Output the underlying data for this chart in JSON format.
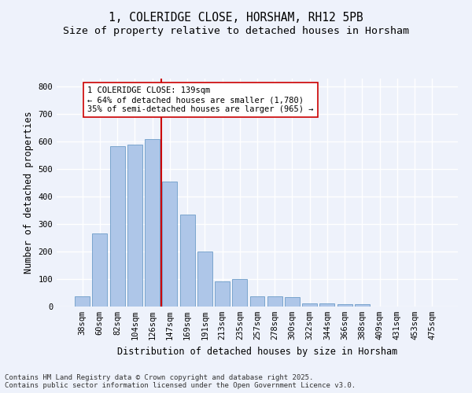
{
  "title_line1": "1, COLERIDGE CLOSE, HORSHAM, RH12 5PB",
  "title_line2": "Size of property relative to detached houses in Horsham",
  "xlabel": "Distribution of detached houses by size in Horsham",
  "ylabel": "Number of detached properties",
  "categories": [
    "38sqm",
    "60sqm",
    "82sqm",
    "104sqm",
    "126sqm",
    "147sqm",
    "169sqm",
    "191sqm",
    "213sqm",
    "235sqm",
    "257sqm",
    "278sqm",
    "300sqm",
    "322sqm",
    "344sqm",
    "366sqm",
    "388sqm",
    "409sqm",
    "431sqm",
    "453sqm",
    "475sqm"
  ],
  "values": [
    38,
    265,
    585,
    590,
    610,
    455,
    335,
    200,
    92,
    100,
    38,
    38,
    33,
    12,
    12,
    10,
    8,
    1,
    1,
    1,
    1
  ],
  "bar_color": "#aec6e8",
  "bar_edge_color": "#5a8fc0",
  "vline_color": "#cc0000",
  "annotation_text": "1 COLERIDGE CLOSE: 139sqm\n← 64% of detached houses are smaller (1,780)\n35% of semi-detached houses are larger (965) →",
  "annotation_box_color": "#ffffff",
  "annotation_box_edge": "#cc0000",
  "ylim": [
    0,
    830
  ],
  "yticks": [
    0,
    100,
    200,
    300,
    400,
    500,
    600,
    700,
    800
  ],
  "background_color": "#eef2fb",
  "grid_color": "#ffffff",
  "footer_text": "Contains HM Land Registry data © Crown copyright and database right 2025.\nContains public sector information licensed under the Open Government Licence v3.0.",
  "title_fontsize": 10.5,
  "subtitle_fontsize": 9.5,
  "axis_label_fontsize": 8.5,
  "tick_fontsize": 7.5,
  "annotation_fontsize": 7.5,
  "footer_fontsize": 6.5
}
